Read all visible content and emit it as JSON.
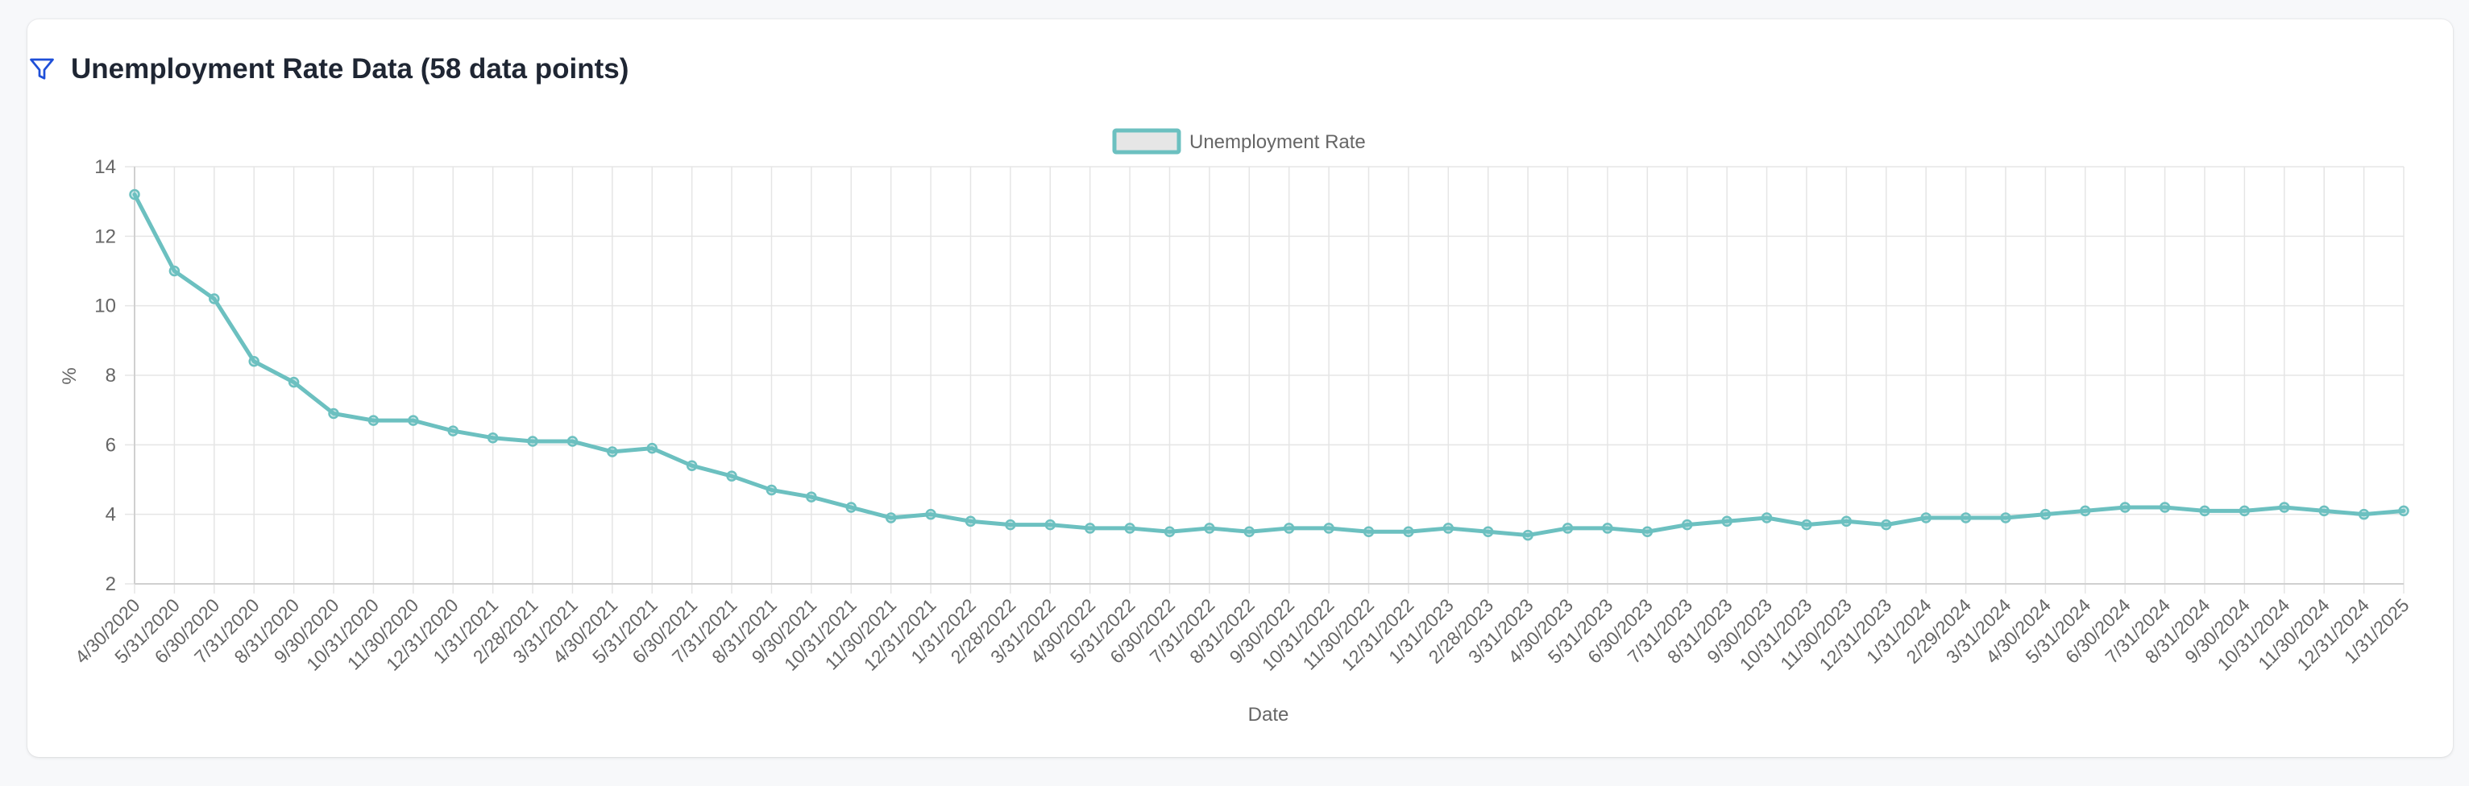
{
  "header": {
    "title": "Unemployment Rate Data (58 data points)",
    "icon": "filter-icon"
  },
  "chart_data": {
    "type": "line",
    "title": "",
    "xlabel": "Date",
    "ylabel": "%",
    "ylim": [
      2,
      14
    ],
    "yticks": [
      2,
      4,
      6,
      8,
      10,
      12,
      14
    ],
    "grid": true,
    "legend_position": "top-center",
    "colors": {
      "line": "#6cc0c0",
      "legend_fill": "#e6e6e6",
      "grid": "#e5e5e5"
    },
    "x": [
      "4/30/2020",
      "5/31/2020",
      "6/30/2020",
      "7/31/2020",
      "8/31/2020",
      "9/30/2020",
      "10/31/2020",
      "11/30/2020",
      "12/31/2020",
      "1/31/2021",
      "2/28/2021",
      "3/31/2021",
      "4/30/2021",
      "5/31/2021",
      "6/30/2021",
      "7/31/2021",
      "8/31/2021",
      "9/30/2021",
      "10/31/2021",
      "11/30/2021",
      "12/31/2021",
      "1/31/2022",
      "2/28/2022",
      "3/31/2022",
      "4/30/2022",
      "5/31/2022",
      "6/30/2022",
      "7/31/2022",
      "8/31/2022",
      "9/30/2022",
      "10/31/2022",
      "11/30/2022",
      "12/31/2022",
      "1/31/2023",
      "2/28/2023",
      "3/31/2023",
      "4/30/2023",
      "5/31/2023",
      "6/30/2023",
      "7/31/2023",
      "8/31/2023",
      "9/30/2023",
      "10/31/2023",
      "11/30/2023",
      "12/31/2023",
      "1/31/2024",
      "2/29/2024",
      "3/31/2024",
      "4/30/2024",
      "5/31/2024",
      "6/30/2024",
      "7/31/2024",
      "8/31/2024",
      "9/30/2024",
      "10/31/2024",
      "11/30/2024",
      "12/31/2024",
      "1/31/2025"
    ],
    "series": [
      {
        "name": "Unemployment Rate",
        "values": [
          13.2,
          11.0,
          10.2,
          8.4,
          7.8,
          6.9,
          6.7,
          6.7,
          6.4,
          6.2,
          6.1,
          6.1,
          5.8,
          5.9,
          5.4,
          5.1,
          4.7,
          4.5,
          4.2,
          3.9,
          4.0,
          3.8,
          3.7,
          3.7,
          3.6,
          3.6,
          3.5,
          3.6,
          3.5,
          3.6,
          3.6,
          3.5,
          3.5,
          3.6,
          3.5,
          3.4,
          3.6,
          3.6,
          3.5,
          3.7,
          3.8,
          3.9,
          3.7,
          3.8,
          3.7,
          3.9,
          3.9,
          3.9,
          4.0,
          4.1,
          4.2,
          4.2,
          4.1,
          4.1,
          4.2,
          4.1,
          4.0,
          4.1
        ]
      }
    ]
  }
}
